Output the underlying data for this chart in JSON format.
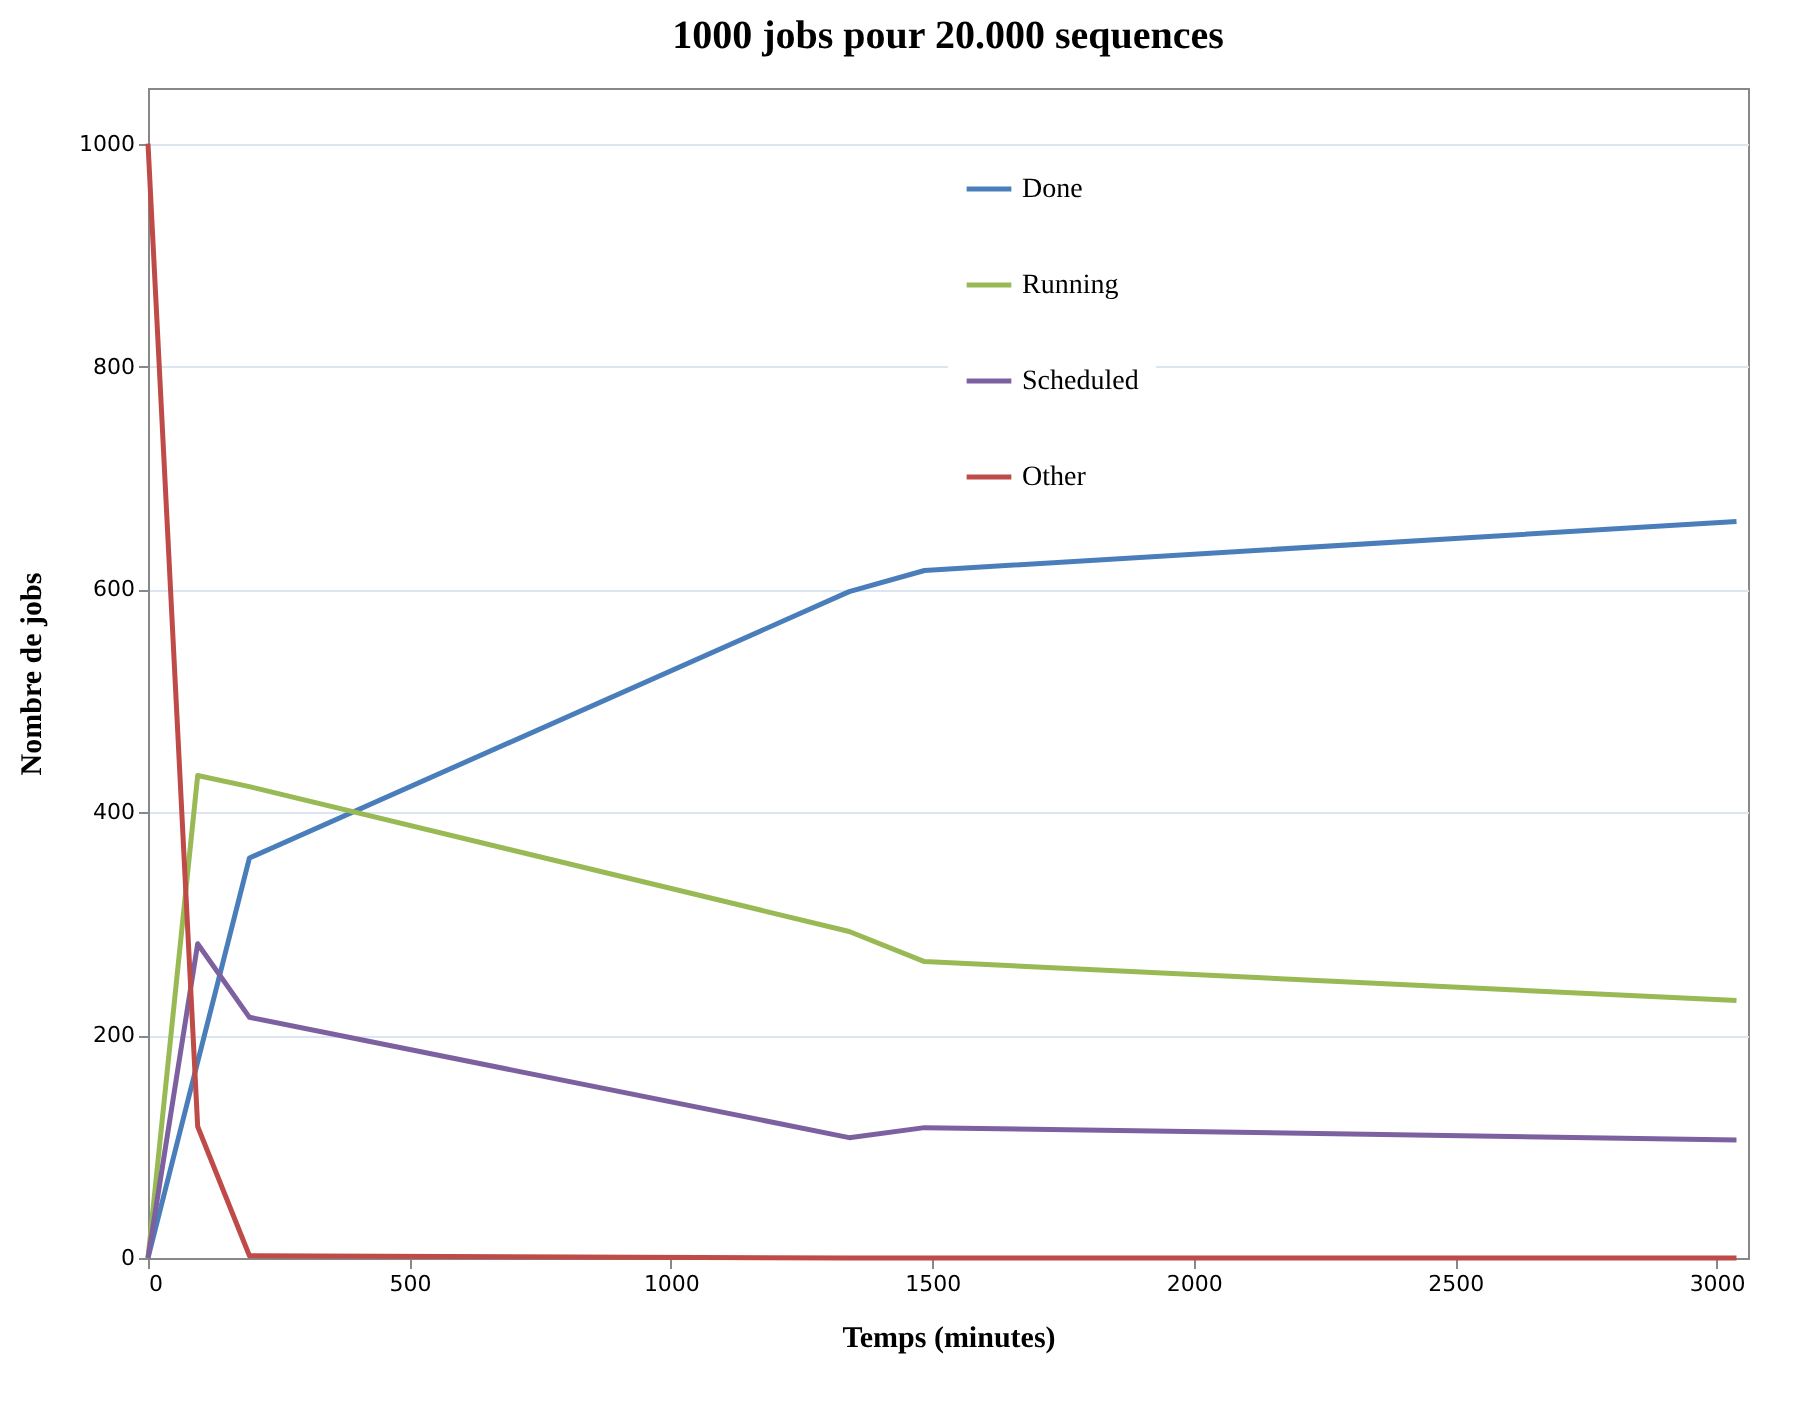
{
  "chart_data": {
    "type": "line",
    "title": "1000 jobs pour 20.000 sequences",
    "xlabel": "Temps (minutes)",
    "ylabel": "Nombre de jobs",
    "x": [
      0,
      95,
      194,
      1341,
      1485,
      3038
    ],
    "series": [
      {
        "name": "Done",
        "color": "#4a7ebb",
        "values": [
          0,
          176,
          359,
          598,
          617,
          661
        ]
      },
      {
        "name": "Running",
        "color": "#98b954",
        "values": [
          0,
          433,
          423,
          293,
          266,
          231
        ]
      },
      {
        "name": "Scheduled",
        "color": "#7d60a0",
        "values": [
          0,
          282,
          216,
          108,
          117,
          106
        ]
      },
      {
        "name": "Other",
        "color": "#be4b48",
        "values": [
          1000,
          118,
          2,
          0,
          0,
          0
        ]
      }
    ],
    "xlim": [
      0,
      3060
    ],
    "xticks": [
      0,
      500,
      1000,
      1500,
      2000,
      2500,
      3000
    ],
    "ylim": [
      0,
      1050
    ],
    "yticks": [
      0,
      200,
      400,
      600,
      800,
      1000
    ],
    "grid": "y",
    "legend": "top",
    "marker": "none",
    "line_style": "solid"
  }
}
